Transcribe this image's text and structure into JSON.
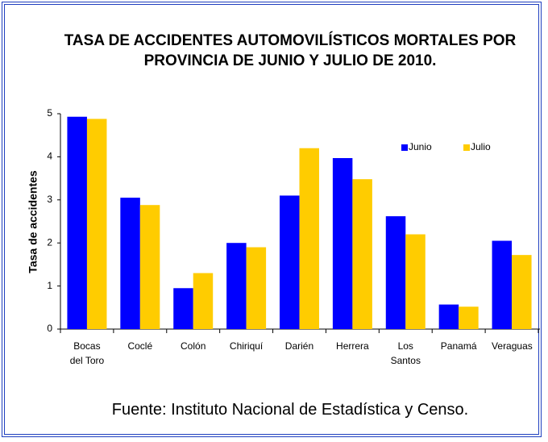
{
  "chart_data": {
    "type": "bar",
    "title": "TASA DE ACCIDENTES AUTOMOVILÍSTICOS MORTALES POR PROVINCIA DE  JUNIO Y JULIO DE 2010.",
    "y_label": "Tasa de accidentes",
    "source": "Fuente: Instituto Nacional de Estadística y Censo.",
    "categories": [
      "Bocas del Toro",
      "Coclé",
      "Colón",
      "Chiriquí",
      "Darién",
      "Herrera",
      "Los Santos",
      "Panamá",
      "Veraguas"
    ],
    "series": [
      {
        "name": "Junio",
        "color": "#0000ff",
        "values": [
          4.93,
          3.05,
          0.95,
          2.0,
          3.1,
          3.97,
          2.62,
          0.57,
          2.05
        ]
      },
      {
        "name": "Julio",
        "color": "#ffcc00",
        "values": [
          4.88,
          2.88,
          1.3,
          1.9,
          4.2,
          3.48,
          2.2,
          0.52,
          1.72
        ]
      }
    ],
    "ylim": [
      0,
      5
    ],
    "yticks": [
      0,
      1,
      2,
      3,
      4,
      5
    ],
    "grid": false,
    "legend": "upper right"
  }
}
